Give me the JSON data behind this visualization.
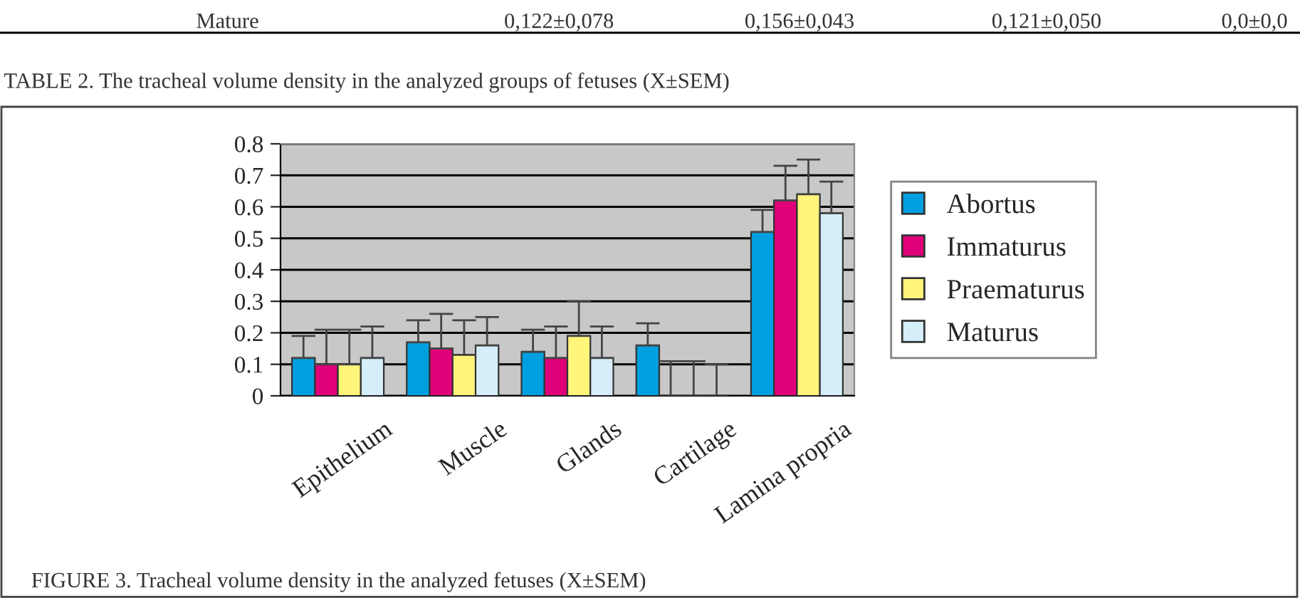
{
  "chart_data": {
    "type": "bar",
    "categories": [
      "Epithelium",
      "Muscle",
      "Glands",
      "Cartilage",
      "Lamina propria"
    ],
    "series": [
      {
        "name": "Abortus",
        "color": "#00a0e0",
        "values": [
          0.12,
          0.17,
          0.14,
          0.16,
          0.52
        ],
        "errors": [
          [
            0.12,
            0.19
          ],
          [
            0.17,
            0.24
          ],
          [
            0.14,
            0.21
          ],
          [
            0.16,
            0.23
          ],
          [
            0.52,
            0.59
          ]
        ]
      },
      {
        "name": "Immaturus",
        "color": "#e0007a",
        "values": [
          0.1,
          0.15,
          0.12,
          0,
          0.62
        ],
        "errors": [
          [
            0.1,
            0.21
          ],
          [
            0.15,
            0.26
          ],
          [
            0.12,
            0.22
          ],
          [
            0,
            0.11
          ],
          [
            0.62,
            0.73
          ]
        ]
      },
      {
        "name": "Praematurus",
        "color": "#fff57a",
        "values": [
          0.1,
          0.13,
          0.19,
          0,
          0.64
        ],
        "errors": [
          [
            0.1,
            0.21
          ],
          [
            0.13,
            0.24
          ],
          [
            0.19,
            0.3
          ],
          [
            0,
            0.11
          ],
          [
            0.64,
            0.75
          ]
        ]
      },
      {
        "name": "Maturus",
        "color": "#d5eefa",
        "values": [
          0.12,
          0.16,
          0.12,
          0,
          0.58
        ],
        "errors": [
          [
            0.12,
            0.22
          ],
          [
            0.16,
            0.25
          ],
          [
            0.12,
            0.22
          ],
          [
            0,
            0.1
          ],
          [
            0.58,
            0.68
          ]
        ]
      }
    ],
    "ylim": [
      0,
      0.8
    ],
    "yticks": [
      0,
      0.1,
      0.2,
      0.3,
      0.4,
      0.5,
      0.6,
      0.7,
      0.8
    ],
    "grid": "y",
    "legend": "right",
    "annotations": [
      "Mature",
      "0,122±0,078",
      "0,156±0,043",
      "0,121±0,050",
      "0,0±0,0",
      "TABLE 2. The tracheal volume density in the analyzed groups of fetuses (X±SEM)",
      "FIGURE 3. Tracheal volume density in the analyzed fetuses (X±SEM)"
    ]
  }
}
